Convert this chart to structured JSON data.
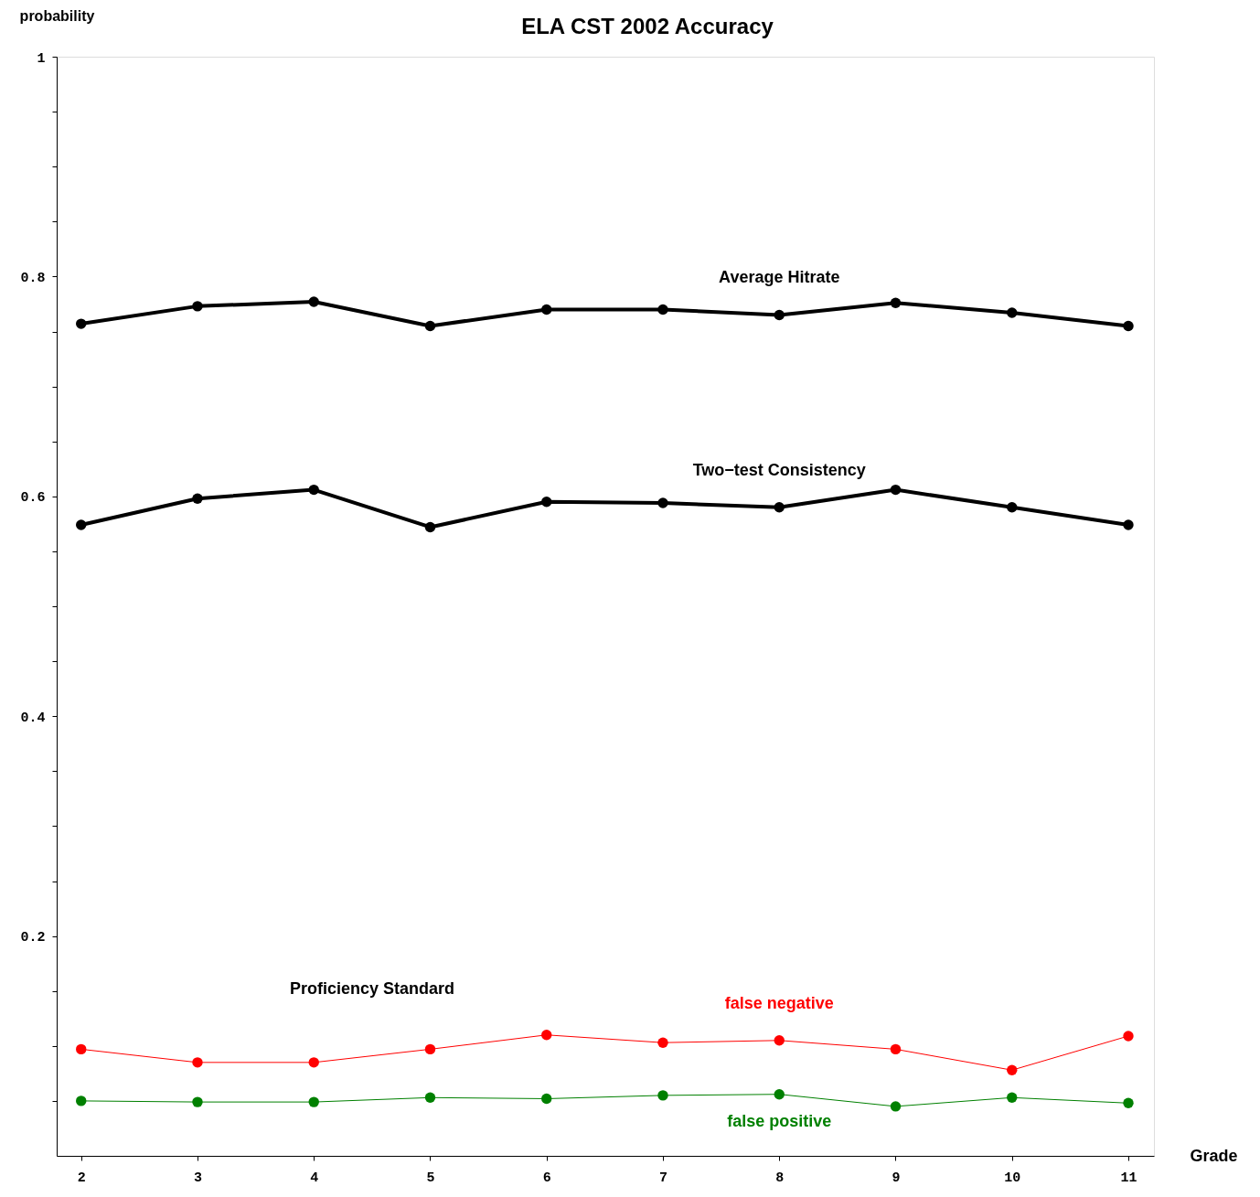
{
  "chart_data": {
    "type": "line",
    "title": "ELA  CST  2002  Accuracy",
    "xlabel": "Grade",
    "ylabel": "probability",
    "x": [
      2,
      3,
      4,
      5,
      6,
      7,
      8,
      9,
      10,
      11
    ],
    "series": [
      {
        "name": "Average  Hitrate",
        "color": "#000000",
        "values": [
          0.757,
          0.773,
          0.777,
          0.755,
          0.77,
          0.77,
          0.765,
          0.776,
          0.767,
          0.755
        ]
      },
      {
        "name": "Two−test Consistency",
        "color": "#000000",
        "values": [
          0.574,
          0.598,
          0.606,
          0.572,
          0.595,
          0.594,
          0.59,
          0.606,
          0.59,
          0.574
        ]
      },
      {
        "name": "false negative",
        "color": "#ff0000",
        "values": [
          0.097,
          0.085,
          0.085,
          0.097,
          0.11,
          0.103,
          0.105,
          0.097,
          0.078,
          0.109
        ]
      },
      {
        "name": "false positive",
        "color": "#008000",
        "values": [
          0.05,
          0.049,
          0.049,
          0.053,
          0.052,
          0.055,
          0.056,
          0.045,
          0.053,
          0.048
        ]
      }
    ],
    "annotations": [
      "Proficiency  Standard"
    ],
    "xlim": [
      1.79,
      11.22
    ],
    "ylim": [
      0,
      1
    ],
    "xticks": [
      2,
      3,
      4,
      5,
      6,
      7,
      8,
      9,
      10,
      11
    ],
    "yticks": [
      {
        "value": 0.05,
        "label": null
      },
      {
        "value": 0.1,
        "label": null
      },
      {
        "value": 0.15,
        "label": null
      },
      0.2,
      {
        "value": 0.25,
        "label": null
      },
      {
        "value": 0.3,
        "label": null
      },
      {
        "value": 0.35,
        "label": null
      },
      0.4,
      {
        "value": 0.45,
        "label": null
      },
      {
        "value": 0.5,
        "label": null
      },
      {
        "value": 0.55,
        "label": null
      },
      0.6,
      {
        "value": 0.65,
        "label": null
      },
      {
        "value": 0.7,
        "label": null
      },
      {
        "value": 0.75,
        "label": null
      },
      0.8,
      {
        "value": 0.85,
        "label": null
      },
      {
        "value": 0.9,
        "label": null
      },
      {
        "value": 0.95,
        "label": null
      },
      1
    ],
    "grid": false,
    "legend": false,
    "marker": "circle",
    "line_style": "solid"
  }
}
